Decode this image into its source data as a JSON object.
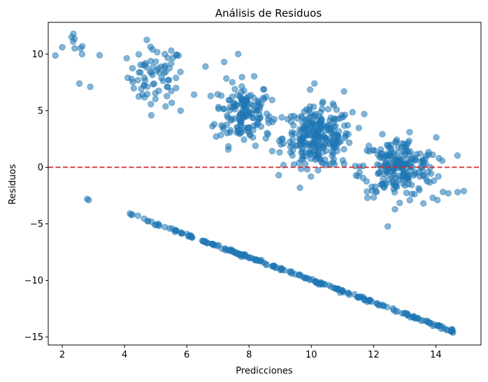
{
  "chart_data": {
    "type": "scatter",
    "title": "Análisis de Residuos",
    "xlabel": "Predicciones",
    "ylabel": "Residuos",
    "xlim": [
      1.55,
      15.45
    ],
    "ylim": [
      -15.7,
      12.8
    ],
    "xticks": [
      2,
      4,
      6,
      8,
      10,
      12,
      14
    ],
    "yticks": [
      -15,
      -10,
      -5,
      0,
      5,
      10
    ],
    "xtick_labels": [
      "2",
      "4",
      "6",
      "8",
      "10",
      "12",
      "14"
    ],
    "ytick_labels": [
      "−15",
      "−10",
      "−5",
      "0",
      "5",
      "10"
    ],
    "grid": false,
    "marker_color": "#1f77b4",
    "marker_alpha": 0.55,
    "reference_line": {
      "y": 0,
      "color": "#d62728",
      "style": "dashed"
    },
    "groups": [
      {
        "n": 6,
        "x_center": 2.5,
        "x_spread": 0.35,
        "y_center": 10.4,
        "y_spread": 1.0
      },
      {
        "n": 70,
        "x_center": 5.0,
        "x_spread": 0.45,
        "y_center": 8.0,
        "y_spread": 1.3
      },
      {
        "n": 150,
        "x_center": 7.8,
        "x_spread": 0.45,
        "y_center": 4.8,
        "y_spread": 1.4
      },
      {
        "n": 260,
        "x_center": 10.2,
        "x_spread": 0.55,
        "y_center": 2.6,
        "y_spread": 1.3
      },
      {
        "n": 220,
        "x_center": 12.8,
        "x_spread": 0.6,
        "y_center": 0.0,
        "y_spread": 1.3
      }
    ],
    "line_band": {
      "x_start": 4.1,
      "x_end": 14.55,
      "slope": -0.995,
      "intercept": 0.0,
      "n": 230,
      "noise": 0.06
    },
    "points": [
      {
        "x": 2.0,
        "y": 10.6
      },
      {
        "x": 2.3,
        "y": 11.5
      },
      {
        "x": 2.35,
        "y": 11.1
      },
      {
        "x": 2.4,
        "y": 10.5
      },
      {
        "x": 2.55,
        "y": 7.4
      },
      {
        "x": 2.9,
        "y": 7.1
      },
      {
        "x": 3.2,
        "y": 9.9
      },
      {
        "x": 2.8,
        "y": -2.8
      },
      {
        "x": 2.85,
        "y": -2.9
      },
      {
        "x": 14.4,
        "y": -2.3
      },
      {
        "x": 14.7,
        "y": -2.2
      },
      {
        "x": 14.9,
        "y": -2.1
      },
      {
        "x": 4.9,
        "y": 10.4
      },
      {
        "x": 5.5,
        "y": 10.3
      },
      {
        "x": 7.2,
        "y": 9.3
      },
      {
        "x": 7.65,
        "y": 10.0
      },
      {
        "x": 6.6,
        "y": 8.9
      },
      {
        "x": 5.8,
        "y": 5.0
      },
      {
        "x": 10.1,
        "y": 7.4
      },
      {
        "x": 11.05,
        "y": 6.7
      },
      {
        "x": 11.7,
        "y": 4.7
      },
      {
        "x": 13.9,
        "y": 1.1
      },
      {
        "x": 14.1,
        "y": 0.8
      },
      {
        "x": 13.6,
        "y": -3.2
      },
      {
        "x": 13.9,
        "y": -2.7
      },
      {
        "x": 14.05,
        "y": -2.9
      },
      {
        "x": 9.8,
        "y": 0.3
      },
      {
        "x": 14.5,
        "y": -14.5
      },
      {
        "x": 14.55,
        "y": -14.6
      }
    ]
  }
}
